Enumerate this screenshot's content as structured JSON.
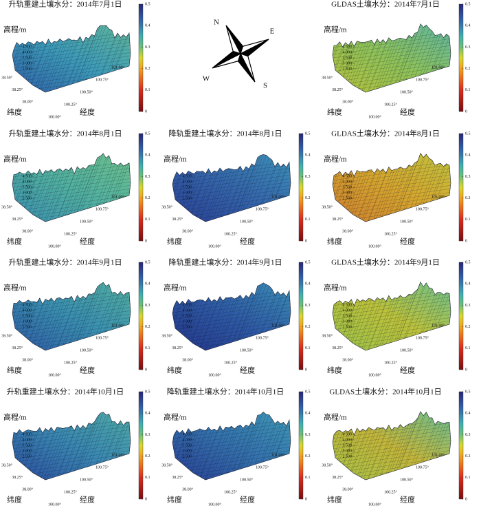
{
  "compass": {
    "labels": [
      "N",
      "E",
      "S",
      "W"
    ]
  },
  "chart_data": [
    {
      "type": "surface",
      "title": "升轨重建土壤水分：2014年7月1日",
      "zlabel": "高程/m",
      "xlabel": "经度",
      "ylabel": "纬度",
      "colors": [
        "#2f5fa8",
        "#3d9ab8",
        "#5fb59a"
      ],
      "zlim": [
        2500,
        4500
      ],
      "zticks": [
        {
          "value": 4500,
          "label": "4 500"
        },
        {
          "value": 4000,
          "label": "4 000"
        },
        {
          "value": 3500,
          "label": "3 500"
        },
        {
          "value": 3000,
          "label": "3 000"
        },
        {
          "value": 2500,
          "label": "2 500"
        }
      ],
      "ylim": [
        38.0,
        38.5
      ],
      "yticks": [
        {
          "value": 38.5,
          "label": "38.50°"
        },
        {
          "value": 38.25,
          "label": "38.25°"
        },
        {
          "value": 38.0,
          "label": "38.00°"
        }
      ],
      "xlim": [
        100.0,
        101.0
      ],
      "xticks": [
        {
          "value": 100.0,
          "label": "100.00°"
        },
        {
          "value": 100.25,
          "label": "100.25°"
        },
        {
          "value": 100.5,
          "label": "100.50°"
        },
        {
          "value": 100.75,
          "label": "100.75°"
        },
        {
          "value": 101.0,
          "label": "101.00°"
        }
      ],
      "clim": [
        0,
        0.5
      ],
      "cticks": [
        0,
        0.1,
        0.2,
        0.3,
        0.4,
        0.5
      ]
    },
    {
      "type": "surface",
      "title": "GLDAS土壤水分：2014年7月1日",
      "zlabel": "高程/m",
      "xlabel": "经度",
      "ylabel": "纬度",
      "colors": [
        "#b7c23a",
        "#8ec25a",
        "#5fb5a0"
      ],
      "zlim": [
        2500,
        4500
      ],
      "zticks": [
        {
          "value": 4500,
          "label": "4 500"
        },
        {
          "value": 4000,
          "label": "4 000"
        },
        {
          "value": 3500,
          "label": "3 500"
        },
        {
          "value": 3000,
          "label": "3 000"
        },
        {
          "value": 2500,
          "label": "2 500"
        }
      ],
      "ylim": [
        38.0,
        38.5
      ],
      "yticks": [
        {
          "value": 38.5,
          "label": "38.50°"
        },
        {
          "value": 38.25,
          "label": "38.25°"
        },
        {
          "value": 38.0,
          "label": "38.00°"
        }
      ],
      "xlim": [
        100.0,
        101.0
      ],
      "xticks": [
        {
          "value": 100.0,
          "label": "100.00°"
        },
        {
          "value": 100.25,
          "label": "100.25°"
        },
        {
          "value": 100.5,
          "label": "100.50°"
        },
        {
          "value": 100.75,
          "label": "100.75°"
        },
        {
          "value": 101.0,
          "label": "101.00°"
        }
      ],
      "clim": [
        0,
        0.5
      ],
      "cticks": [
        0,
        0.1,
        0.2,
        0.3,
        0.4,
        0.5
      ]
    },
    {
      "type": "surface",
      "title": "升轨重建土壤水分：2014年8月1日",
      "zlabel": "高程/m",
      "xlabel": "经度",
      "ylabel": "纬度",
      "colors": [
        "#3a8fb0",
        "#52b0a0",
        "#6cc08a"
      ],
      "zlim": [
        2500,
        4500
      ],
      "zticks": [
        {
          "value": 4500,
          "label": "4 500"
        },
        {
          "value": 4000,
          "label": "4 000"
        },
        {
          "value": 3500,
          "label": "3 500"
        },
        {
          "value": 3000,
          "label": "3 000"
        },
        {
          "value": 2500,
          "label": "2 500"
        }
      ],
      "ylim": [
        38.0,
        38.5
      ],
      "yticks": [
        {
          "value": 38.5,
          "label": "38.50°"
        },
        {
          "value": 38.25,
          "label": "38.25°"
        },
        {
          "value": 38.0,
          "label": "38.00°"
        }
      ],
      "xlim": [
        100.0,
        101.0
      ],
      "xticks": [
        {
          "value": 100.0,
          "label": "100.00°"
        },
        {
          "value": 100.25,
          "label": "100.25°"
        },
        {
          "value": 100.5,
          "label": "100.50°"
        },
        {
          "value": 100.75,
          "label": "100.75°"
        },
        {
          "value": 101.0,
          "label": "101.00°"
        }
      ],
      "clim": [
        0,
        0.5
      ],
      "cticks": [
        0,
        0.1,
        0.2,
        0.3,
        0.4,
        0.5
      ]
    },
    {
      "type": "surface",
      "title": "降轨重建土壤水分：2014年8月1日",
      "zlabel": "高程/m",
      "xlabel": "经度",
      "ylabel": "纬度",
      "colors": [
        "#2a3f95",
        "#3565aa",
        "#3d90b8"
      ],
      "zlim": [
        2500,
        4500
      ],
      "zticks": [
        {
          "value": 4500,
          "label": "4 500"
        },
        {
          "value": 4000,
          "label": "4 000"
        },
        {
          "value": 3500,
          "label": "3 500"
        },
        {
          "value": 3000,
          "label": "3 000"
        },
        {
          "value": 2500,
          "label": "2 500"
        }
      ],
      "ylim": [
        38.0,
        38.5
      ],
      "yticks": [
        {
          "value": 38.5,
          "label": "38.50°"
        },
        {
          "value": 38.25,
          "label": "38.25°"
        },
        {
          "value": 38.0,
          "label": "38.00°"
        }
      ],
      "xlim": [
        100.0,
        101.0
      ],
      "xticks": [
        {
          "value": 100.0,
          "label": "100.00°"
        },
        {
          "value": 100.25,
          "label": "100.25°"
        },
        {
          "value": 100.5,
          "label": "100.50°"
        },
        {
          "value": 100.75,
          "label": "100.75°"
        },
        {
          "value": 101.0,
          "label": "101.00°"
        }
      ],
      "clim": [
        0,
        0.5
      ],
      "cticks": [
        0,
        0.1,
        0.2,
        0.3,
        0.4,
        0.5
      ]
    },
    {
      "type": "surface",
      "title": "GLDAS土壤水分：2014年8月1日",
      "zlabel": "高程/m",
      "xlabel": "经度",
      "ylabel": "纬度",
      "colors": [
        "#d0802e",
        "#d6a52e",
        "#c0c23c"
      ],
      "zlim": [
        2500,
        4500
      ],
      "zticks": [
        {
          "value": 4500,
          "label": "4 500"
        },
        {
          "value": 4000,
          "label": "4 000"
        },
        {
          "value": 3500,
          "label": "3 500"
        },
        {
          "value": 3000,
          "label": "3 000"
        },
        {
          "value": 2500,
          "label": "2 500"
        }
      ],
      "ylim": [
        38.0,
        38.5
      ],
      "yticks": [
        {
          "value": 38.5,
          "label": "38.50°"
        },
        {
          "value": 38.25,
          "label": "38.25°"
        },
        {
          "value": 38.0,
          "label": "38.00°"
        }
      ],
      "xlim": [
        100.0,
        101.0
      ],
      "xticks": [
        {
          "value": 100.0,
          "label": "100.00°"
        },
        {
          "value": 100.25,
          "label": "100.25°"
        },
        {
          "value": 100.5,
          "label": "100.50°"
        },
        {
          "value": 100.75,
          "label": "100.75°"
        },
        {
          "value": 101.0,
          "label": "101.00°"
        }
      ],
      "clim": [
        0,
        0.5
      ],
      "cticks": [
        0,
        0.1,
        0.2,
        0.3,
        0.4,
        0.5
      ]
    },
    {
      "type": "surface",
      "title": "升轨重建土壤水分：2014年9月1日",
      "zlabel": "高程/m",
      "xlabel": "经度",
      "ylabel": "纬度",
      "colors": [
        "#2e5aa5",
        "#3a8fb0",
        "#52ae9e"
      ],
      "zlim": [
        2500,
        4500
      ],
      "zticks": [
        {
          "value": 4500,
          "label": "4 500"
        },
        {
          "value": 4000,
          "label": "4 000"
        },
        {
          "value": 3500,
          "label": "3 500"
        },
        {
          "value": 3000,
          "label": "3 000"
        },
        {
          "value": 2500,
          "label": "2 500"
        }
      ],
      "ylim": [
        38.0,
        38.5
      ],
      "yticks": [
        {
          "value": 38.5,
          "label": "38.50°"
        },
        {
          "value": 38.25,
          "label": "38.25°"
        },
        {
          "value": 38.0,
          "label": "38.00°"
        }
      ],
      "xlim": [
        100.0,
        101.0
      ],
      "xticks": [
        {
          "value": 100.0,
          "label": "100.00°"
        },
        {
          "value": 100.25,
          "label": "100.25°"
        },
        {
          "value": 100.5,
          "label": "100.50°"
        },
        {
          "value": 100.75,
          "label": "100.75°"
        },
        {
          "value": 101.0,
          "label": "101.00°"
        }
      ],
      "clim": [
        0,
        0.5
      ],
      "cticks": [
        0,
        0.1,
        0.2,
        0.3,
        0.4,
        0.5
      ]
    },
    {
      "type": "surface",
      "title": "降轨重建土壤水分：2014年9月1日",
      "zlabel": "高程/m",
      "xlabel": "经度",
      "ylabel": "纬度",
      "colors": [
        "#23358a",
        "#2f5aa5",
        "#3a8db5"
      ],
      "zlim": [
        2500,
        4500
      ],
      "zticks": [
        {
          "value": 4500,
          "label": "4 500"
        },
        {
          "value": 4000,
          "label": "4 000"
        },
        {
          "value": 3500,
          "label": "3 500"
        },
        {
          "value": 3000,
          "label": "3 000"
        },
        {
          "value": 2500,
          "label": "2 500"
        }
      ],
      "ylim": [
        38.0,
        38.5
      ],
      "yticks": [
        {
          "value": 38.5,
          "label": "38.50°"
        },
        {
          "value": 38.25,
          "label": "38.25°"
        },
        {
          "value": 38.0,
          "label": "38.00°"
        }
      ],
      "xlim": [
        100.0,
        101.0
      ],
      "xticks": [
        {
          "value": 100.0,
          "label": "100.00°"
        },
        {
          "value": 100.25,
          "label": "100.25°"
        },
        {
          "value": 100.5,
          "label": "100.50°"
        },
        {
          "value": 100.75,
          "label": "100.75°"
        },
        {
          "value": 101.0,
          "label": "101.00°"
        }
      ],
      "clim": [
        0,
        0.5
      ],
      "cticks": [
        0,
        0.1,
        0.2,
        0.3,
        0.4,
        0.5
      ]
    },
    {
      "type": "surface",
      "title": "GLDAS土壤水分：2014年9月1日",
      "zlabel": "高程/m",
      "xlabel": "经度",
      "ylabel": "纬度",
      "colors": [
        "#9cc24a",
        "#bdc23a",
        "#6cc08e"
      ],
      "zlim": [
        2500,
        4500
      ],
      "zticks": [
        {
          "value": 4500,
          "label": "4 500"
        },
        {
          "value": 4000,
          "label": "4 000"
        },
        {
          "value": 3500,
          "label": "3 500"
        },
        {
          "value": 3000,
          "label": "3 000"
        },
        {
          "value": 2500,
          "label": "2 500"
        }
      ],
      "ylim": [
        38.0,
        38.5
      ],
      "yticks": [
        {
          "value": 38.5,
          "label": "38.50°"
        },
        {
          "value": 38.25,
          "label": "38.25°"
        },
        {
          "value": 38.0,
          "label": "38.00°"
        }
      ],
      "xlim": [
        100.0,
        101.0
      ],
      "xticks": [
        {
          "value": 100.0,
          "label": "100.00°"
        },
        {
          "value": 100.25,
          "label": "100.25°"
        },
        {
          "value": 100.5,
          "label": "100.50°"
        },
        {
          "value": 100.75,
          "label": "100.75°"
        },
        {
          "value": 101.0,
          "label": "101.00°"
        }
      ],
      "clim": [
        0,
        0.5
      ],
      "cticks": [
        0,
        0.1,
        0.2,
        0.3,
        0.4,
        0.5
      ]
    },
    {
      "type": "surface",
      "title": "升轨重建土壤水分：2014年10月1日",
      "zlabel": "高程/m",
      "xlabel": "经度",
      "ylabel": "纬度",
      "colors": [
        "#2b4c9e",
        "#3a86b2",
        "#4eaaa5"
      ],
      "zlim": [
        2500,
        4500
      ],
      "zticks": [
        {
          "value": 4500,
          "label": "4 500"
        },
        {
          "value": 4000,
          "label": "4 000"
        },
        {
          "value": 3500,
          "label": "3 500"
        },
        {
          "value": 3000,
          "label": "3 000"
        },
        {
          "value": 2500,
          "label": "2 500"
        }
      ],
      "ylim": [
        38.0,
        38.5
      ],
      "yticks": [
        {
          "value": 38.5,
          "label": "38.50°"
        },
        {
          "value": 38.25,
          "label": "38.25°"
        },
        {
          "value": 38.0,
          "label": "38.00°"
        }
      ],
      "xlim": [
        100.0,
        101.0
      ],
      "xticks": [
        {
          "value": 100.0,
          "label": "100.00°"
        },
        {
          "value": 100.25,
          "label": "100.25°"
        },
        {
          "value": 100.5,
          "label": "100.50°"
        },
        {
          "value": 100.75,
          "label": "100.75°"
        },
        {
          "value": 101.0,
          "label": "101.00°"
        }
      ],
      "clim": [
        0,
        0.5
      ],
      "cticks": [
        0,
        0.1,
        0.2,
        0.3,
        0.4,
        0.5
      ]
    },
    {
      "type": "surface",
      "title": "降轨重建土壤水分：2014年10月1日",
      "zlabel": "高程/m",
      "xlabel": "经度",
      "ylabel": "纬度",
      "colors": [
        "#2a3f95",
        "#3470ac",
        "#3e98b6"
      ],
      "zlim": [
        2500,
        4500
      ],
      "zticks": [
        {
          "value": 4500,
          "label": "4 500"
        },
        {
          "value": 4000,
          "label": "4 000"
        },
        {
          "value": 3500,
          "label": "3 500"
        },
        {
          "value": 3000,
          "label": "3 000"
        },
        {
          "value": 2500,
          "label": "2 500"
        }
      ],
      "ylim": [
        38.0,
        38.5
      ],
      "yticks": [
        {
          "value": 38.5,
          "label": "38.50°"
        },
        {
          "value": 38.25,
          "label": "38.25°"
        },
        {
          "value": 38.0,
          "label": "38.00°"
        }
      ],
      "xlim": [
        100.0,
        101.0
      ],
      "xticks": [
        {
          "value": 100.0,
          "label": "100.00°"
        },
        {
          "value": 100.25,
          "label": "100.25°"
        },
        {
          "value": 100.5,
          "label": "100.50°"
        },
        {
          "value": 100.75,
          "label": "100.75°"
        },
        {
          "value": 101.0,
          "label": "101.00°"
        }
      ],
      "clim": [
        0,
        0.5
      ],
      "cticks": [
        0,
        0.1,
        0.2,
        0.3,
        0.4,
        0.5
      ]
    },
    {
      "type": "surface",
      "title": "GLDAS土壤水分：2014年10月1日",
      "zlabel": "高程/m",
      "xlabel": "经度",
      "ylabel": "纬度",
      "colors": [
        "#a8c244",
        "#c4b63a",
        "#68be92"
      ],
      "zlim": [
        2500,
        4500
      ],
      "zticks": [
        {
          "value": 4500,
          "label": "4 500"
        },
        {
          "value": 4000,
          "label": "4 000"
        },
        {
          "value": 3500,
          "label": "3 500"
        },
        {
          "value": 3000,
          "label": "3 000"
        },
        {
          "value": 2500,
          "label": "2 500"
        }
      ],
      "ylim": [
        38.0,
        38.5
      ],
      "yticks": [
        {
          "value": 38.5,
          "label": "38.50°"
        },
        {
          "value": 38.25,
          "label": "38.25°"
        },
        {
          "value": 38.0,
          "label": "38.00°"
        }
      ],
      "xlim": [
        100.0,
        101.0
      ],
      "xticks": [
        {
          "value": 100.0,
          "label": "100.00°"
        },
        {
          "value": 100.25,
          "label": "100.25°"
        },
        {
          "value": 100.5,
          "label": "100.50°"
        },
        {
          "value": 100.75,
          "label": "100.75°"
        },
        {
          "value": 101.0,
          "label": "101.00°"
        }
      ],
      "clim": [
        0,
        0.5
      ],
      "cticks": [
        0,
        0.1,
        0.2,
        0.3,
        0.4,
        0.5
      ]
    }
  ]
}
